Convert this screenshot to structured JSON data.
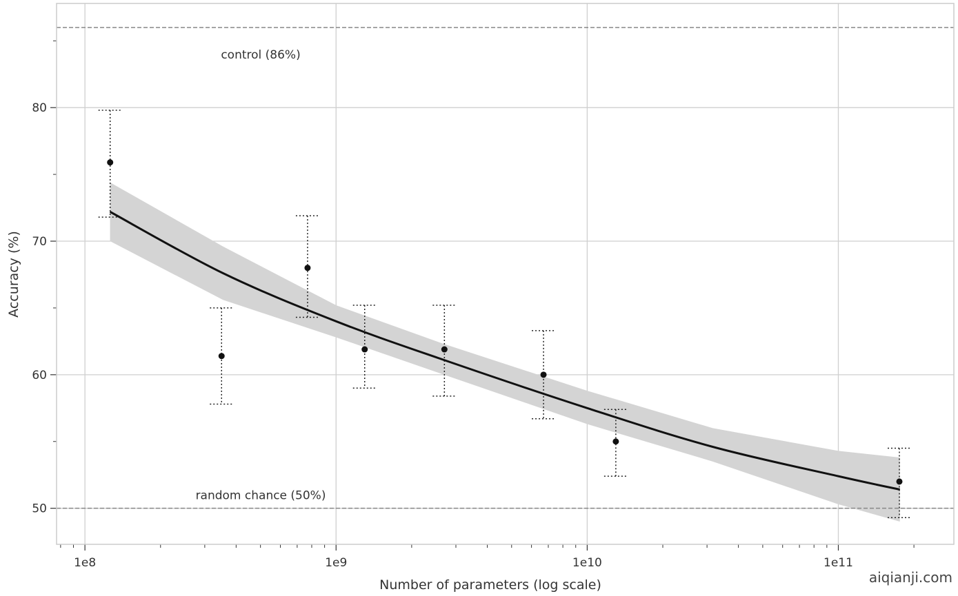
{
  "chart_data": {
    "type": "scatter",
    "title": "",
    "xlabel": "Number of parameters (log scale)",
    "ylabel": "Accuracy (%)",
    "xscale": "log",
    "xlim_log10": [
      7.887,
      11.46
    ],
    "ylim": [
      47.3,
      87.8
    ],
    "grid": true,
    "x_ticks": [
      {
        "log10": 8,
        "label": "1e8"
      },
      {
        "log10": 9,
        "label": "1e9"
      },
      {
        "log10": 10,
        "label": "1e10"
      },
      {
        "log10": 11,
        "label": "1e11"
      }
    ],
    "y_ticks": [
      {
        "value": 50,
        "label": "50"
      },
      {
        "value": 60,
        "label": "60"
      },
      {
        "value": 70,
        "label": "70"
      },
      {
        "value": 80,
        "label": "80"
      }
    ],
    "y_minor_ticks": [
      55,
      65,
      75,
      85
    ],
    "points": [
      {
        "x": 126000000.0,
        "y": 75.9,
        "err_low": 71.8,
        "err_high": 79.8
      },
      {
        "x": 350000000.0,
        "y": 61.4,
        "err_low": 57.8,
        "err_high": 65.0
      },
      {
        "x": 770000000.0,
        "y": 68.0,
        "err_low": 64.3,
        "err_high": 71.9
      },
      {
        "x": 1300000000.0,
        "y": 61.9,
        "err_low": 59.0,
        "err_high": 65.2
      },
      {
        "x": 2700000000.0,
        "y": 61.9,
        "err_low": 58.4,
        "err_high": 65.2
      },
      {
        "x": 6700000000.0,
        "y": 60.0,
        "err_low": 56.7,
        "err_high": 63.3
      },
      {
        "x": 13000000000.0,
        "y": 55.0,
        "err_low": 52.4,
        "err_high": 57.4
      },
      {
        "x": 175000000000.0,
        "y": 52.0,
        "err_low": 49.3,
        "err_high": 54.5
      }
    ],
    "fit_line": {
      "log10_x": [
        8.1,
        8.55,
        9.0,
        9.43,
        10.0,
        10.5,
        11.0,
        11.245
      ],
      "y": [
        72.2,
        67.6,
        64.0,
        61.1,
        57.5,
        54.6,
        52.4,
        51.4
      ],
      "band_low": [
        70.0,
        65.6,
        62.8,
        60.0,
        56.3,
        53.5,
        50.3,
        49.0
      ],
      "band_high": [
        74.4,
        69.6,
        65.2,
        62.3,
        58.8,
        56.0,
        54.3,
        53.8
      ]
    },
    "reference_lines": [
      {
        "y": 86,
        "label": "control (86%)",
        "label_log10_x": 8.7
      },
      {
        "y": 50,
        "label": "random chance (50%)",
        "label_log10_x": 8.7
      }
    ]
  },
  "watermark": "aiqianji.com",
  "colors": {
    "points": "#111111",
    "fit": "#111111",
    "band": "#d4d4d4",
    "grid": "#cfcfcf",
    "ref": "#888888"
  }
}
